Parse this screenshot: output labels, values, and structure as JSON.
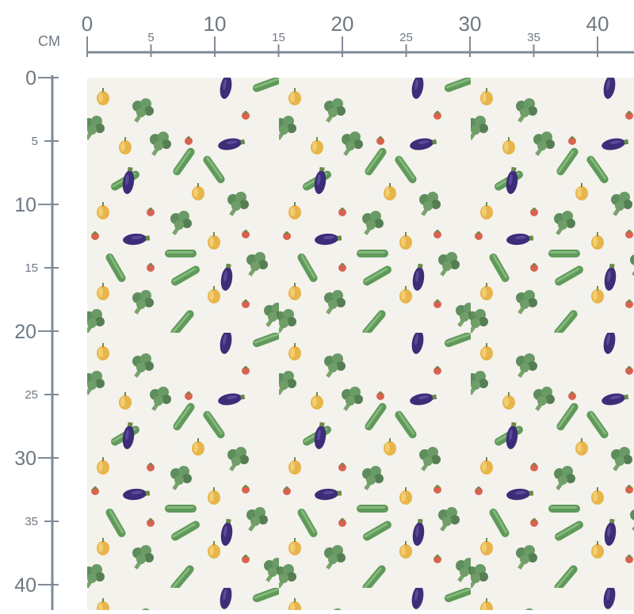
{
  "unit_label": "CM",
  "top_ruler": {
    "ticks": [
      0,
      5,
      10,
      15,
      20,
      25,
      30,
      35,
      40
    ]
  },
  "left_ruler": {
    "ticks": [
      0,
      5,
      10,
      15,
      20,
      25,
      30,
      35,
      40
    ]
  }
}
